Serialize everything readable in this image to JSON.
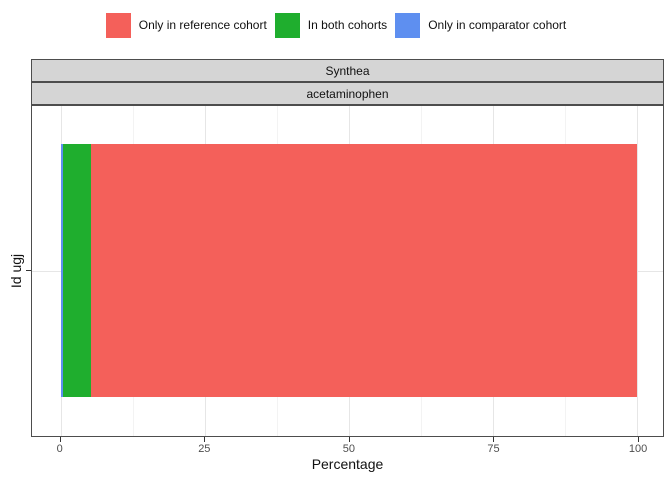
{
  "legend": {
    "items": [
      {
        "label": "Only in reference cohort",
        "color": "#f4605a"
      },
      {
        "label": "In both cohorts",
        "color": "#1fae2e"
      },
      {
        "label": "Only in comparator cohort",
        "color": "#5e8ff0"
      }
    ]
  },
  "facets": {
    "outer": "Synthea",
    "inner": "acetaminophen"
  },
  "x_axis": {
    "title": "Percentage",
    "ticks": [
      0,
      25,
      50,
      75,
      100
    ],
    "minor_ticks": [
      12.5,
      37.5,
      62.5,
      87.5
    ],
    "range": [
      0,
      100
    ]
  },
  "y_axis": {
    "title": "Id ugj",
    "categories": [
      ""
    ]
  },
  "chart_data": {
    "type": "bar",
    "orientation": "horizontal",
    "stacked": true,
    "title": "",
    "facet_outer": "Synthea",
    "facet_inner": "acetaminophen",
    "categories": [
      ""
    ],
    "series": [
      {
        "name": "Only in comparator cohort",
        "values": [
          0.45
        ],
        "color": "#5e8ff0"
      },
      {
        "name": "In both cohorts",
        "values": [
          4.75
        ],
        "color": "#1fae2e"
      },
      {
        "name": "Only in reference cohort",
        "values": [
          94.8
        ],
        "color": "#f4605a"
      }
    ],
    "xlabel": "Percentage",
    "ylabel": "Id ugj",
    "xlim": [
      0,
      100
    ],
    "x_ticks": [
      0,
      25,
      50,
      75,
      100
    ],
    "legend_position": "top",
    "legend_order": [
      "Only in reference cohort",
      "In both cohorts",
      "Only in comparator cohort"
    ],
    "grid": true,
    "panel_border": true
  }
}
